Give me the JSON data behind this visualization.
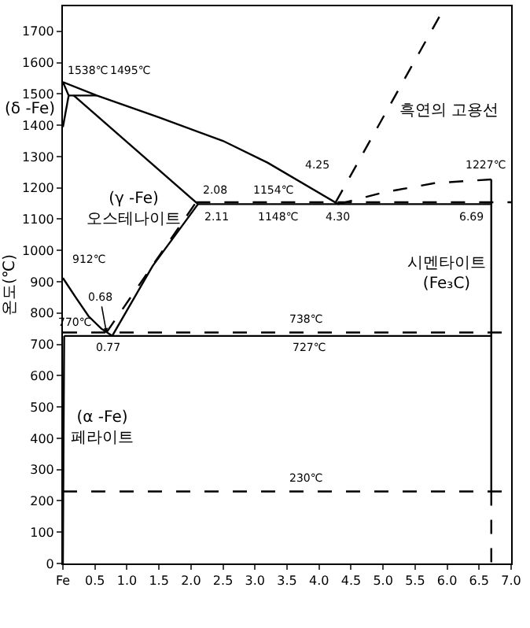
{
  "chart_data": {
    "type": "line",
    "ylabel": "온도(℃)",
    "xlim": [
      0,
      7
    ],
    "ylim": [
      0,
      1780
    ],
    "xticks": [
      {
        "value": 0,
        "label": "Fe"
      },
      0.5,
      {
        "value": 1,
        "label": "1.0"
      },
      1.5,
      {
        "value": 2,
        "label": "2.0"
      },
      2.5,
      {
        "value": 3,
        "label": "3.0"
      },
      3.5,
      {
        "value": 4,
        "label": "4.0"
      },
      4.5,
      {
        "value": 5,
        "label": "5.0"
      },
      5.5,
      {
        "value": 6,
        "label": "6.0"
      },
      6.5,
      {
        "value": 7,
        "label": "7.0"
      }
    ],
    "yticks": [
      0,
      100,
      200,
      300,
      400,
      500,
      600,
      700,
      800,
      900,
      1000,
      1100,
      1200,
      1300,
      1400,
      1500,
      1600,
      1700
    ],
    "marker": "none",
    "series": [
      {
        "color": "#000000",
        "line_style": "solid",
        "x": [
          0,
          0.53,
          1.5,
          2.5,
          3.2,
          4.3
        ],
        "values": [
          1538,
          1495,
          1425,
          1350,
          1280,
          1148
        ]
      },
      {
        "color": "#000000",
        "line_style": "solid",
        "x": [
          0,
          0.09
        ],
        "values": [
          1538,
          1495
        ]
      },
      {
        "color": "#000000",
        "line_style": "solid",
        "x": [
          0,
          0.09
        ],
        "values": [
          1394,
          1495
        ]
      },
      {
        "color": "#000000",
        "line_style": "solid",
        "x": [
          0.09,
          0.53
        ],
        "values": [
          1495,
          1495
        ]
      },
      {
        "color": "#000000",
        "line_style": "solid",
        "x": [
          0.17,
          2.11
        ],
        "values": [
          1495,
          1148
        ]
      },
      {
        "color": "#000000",
        "line_style": "solid",
        "x": [
          2.11,
          6.69
        ],
        "values": [
          1148,
          1148
        ]
      },
      {
        "color": "#000000",
        "line_style": "dashed",
        "x": [
          2.08,
          7
        ],
        "values": [
          1154,
          1154
        ]
      },
      {
        "color": "#000000",
        "line_style": "solid",
        "x": [
          0,
          0.2,
          0.4,
          0.6,
          0.77
        ],
        "values": [
          912,
          850,
          790,
          750,
          727
        ]
      },
      {
        "color": "#000000",
        "line_style": "solid",
        "x": [
          0.77,
          1.4,
          2.11
        ],
        "values": [
          727,
          950,
          1148
        ]
      },
      {
        "color": "#000000",
        "line_style": "dashed",
        "x": [
          0.68,
          2.08
        ],
        "values": [
          738,
          1154
        ]
      },
      {
        "color": "#000000",
        "line_style": "solid",
        "x": [
          0.02,
          6.69
        ],
        "values": [
          727,
          727
        ]
      },
      {
        "color": "#000000",
        "line_style": "dashed",
        "x": [
          0,
          7
        ],
        "values": [
          738,
          738
        ]
      },
      {
        "color": "#000000",
        "line_style": "solid",
        "x": [
          0.02,
          0.01,
          0
        ],
        "values": [
          727,
          400,
          0
        ]
      },
      {
        "color": "#000000",
        "line_style": "solid",
        "x": [
          6.69,
          6.69
        ],
        "values": [
          1227,
          230
        ]
      },
      {
        "color": "#000000",
        "line_style": "dashed",
        "x": [
          6.69,
          6.69
        ],
        "values": [
          230,
          0
        ]
      },
      {
        "color": "#000000",
        "line_style": "dashed",
        "x": [
          4.26,
          5.97
        ],
        "values": [
          1154,
          1780
        ]
      },
      {
        "color": "#000000",
        "line_style": "dashed",
        "x": [
          4.3,
          5,
          5.8,
          6.69
        ],
        "values": [
          1148,
          1185,
          1215,
          1227
        ]
      },
      {
        "color": "#000000",
        "line_style": "dashed",
        "x": [
          0,
          7
        ],
        "values": [
          230,
          230
        ]
      }
    ],
    "annotations": [
      {
        "text": "1538℃",
        "x": 0,
        "y": 1538
      },
      {
        "text": "1495℃",
        "x": 0.53,
        "y": 1495
      },
      "(δ -Fe)",
      "(γ -Fe)\n오스테나이트",
      {
        "text": "2.08",
        "x": 2.08,
        "y": 1154
      },
      {
        "text": "2.11",
        "x": 2.11,
        "y": 1148
      },
      {
        "text": "1154℃",
        "x": 3.3,
        "y": 1154
      },
      {
        "text": "1148℃",
        "x": 3.36,
        "y": 1148
      },
      {
        "text": "4.25",
        "x": 4.26,
        "y": 1154
      },
      {
        "text": "4.30",
        "x": 4.3,
        "y": 1148
      },
      "흑연의 고용선",
      {
        "text": "1227℃",
        "x": 6.69,
        "y": 1227
      },
      {
        "text": "6.69",
        "x": 6.69,
        "y": 1148
      },
      "시멘타이트\n(Fe₃C)",
      {
        "text": "912℃",
        "x": 0,
        "y": 912
      },
      {
        "text": "0.68",
        "x": 0.68,
        "y": 738
      },
      {
        "text": "0.77",
        "x": 0.77,
        "y": 727
      },
      "770℃",
      {
        "text": "738℃",
        "x": 3.79,
        "y": 738
      },
      {
        "text": "727℃",
        "x": 3.84,
        "y": 727
      },
      "(α -Fe)\n페라이트",
      {
        "text": "230℃",
        "x": 3.79,
        "y": 230
      }
    ]
  }
}
